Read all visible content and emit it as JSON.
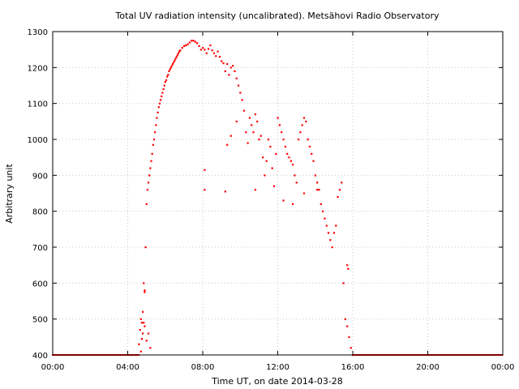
{
  "chart_data": {
    "type": "scatter",
    "title": "Total UV radiation intensity (uncalibrated). Metsähovi Radio Observatory",
    "xlabel": "Time UT, on date 2014-03-28",
    "ylabel": "Arbitrary unit",
    "xlim": [
      0,
      24
    ],
    "ylim": [
      400,
      1300
    ],
    "x_ticks": [
      {
        "value": 0,
        "label": "00:00"
      },
      {
        "value": 4,
        "label": "04:00"
      },
      {
        "value": 8,
        "label": "08:00"
      },
      {
        "value": 12,
        "label": "12:00"
      },
      {
        "value": 16,
        "label": "16:00"
      },
      {
        "value": 20,
        "label": "20:00"
      },
      {
        "value": 24,
        "label": "00:00"
      }
    ],
    "y_ticks": [
      {
        "value": 400,
        "label": "400"
      },
      {
        "value": 500,
        "label": "500"
      },
      {
        "value": 600,
        "label": "600"
      },
      {
        "value": 700,
        "label": "700"
      },
      {
        "value": 800,
        "label": "800"
      },
      {
        "value": 900,
        "label": "900"
      },
      {
        "value": 1000,
        "label": "1000"
      },
      {
        "value": 1100,
        "label": "1100"
      },
      {
        "value": 1200,
        "label": "1200"
      },
      {
        "value": 1300,
        "label": "1300"
      }
    ],
    "grid": true,
    "marker_color": "#ff0000",
    "series": [
      {
        "x": [
          4.6,
          4.65,
          4.7,
          4.75,
          4.8,
          4.85,
          4.9,
          4.95,
          5.0,
          5.05,
          5.1,
          5.15,
          5.2,
          5.25,
          5.3,
          5.35,
          5.4,
          5.45,
          5.5,
          5.55,
          5.6,
          5.65,
          5.7,
          5.75,
          5.8,
          5.85,
          5.9,
          5.95,
          6.0,
          6.05,
          6.1,
          6.15,
          6.2,
          6.25,
          6.3,
          6.35,
          6.4,
          6.45,
          6.5,
          6.55,
          6.6,
          6.65,
          6.7,
          6.75,
          6.8,
          6.9,
          7.0,
          7.1,
          7.2,
          7.3,
          7.4,
          7.5,
          7.6,
          7.7,
          7.8,
          7.9,
          8.0,
          8.1,
          8.2,
          8.3,
          8.4,
          8.5,
          8.6,
          8.7,
          8.8,
          8.9,
          9.0,
          9.1,
          9.2,
          9.3,
          9.4,
          9.5,
          9.6,
          9.7,
          9.8,
          9.9,
          10.0,
          10.1,
          10.2,
          10.3,
          10.4,
          10.5,
          10.6,
          10.7,
          10.8,
          10.9,
          11.0,
          11.1,
          11.2,
          11.3,
          11.4,
          11.5,
          11.6,
          11.7,
          11.8,
          11.9,
          12.0,
          12.1,
          12.2,
          12.3,
          12.4,
          12.5,
          12.6,
          12.7,
          12.8,
          12.9,
          13.0,
          13.1,
          13.2,
          13.3,
          13.4,
          13.5,
          13.6,
          13.7,
          13.8,
          13.9,
          14.0,
          14.1,
          14.2,
          14.3,
          14.4,
          14.5,
          14.6,
          14.7,
          14.8,
          14.9,
          15.0,
          15.1,
          15.2,
          15.3,
          15.4,
          15.5,
          15.6,
          15.7,
          15.8,
          15.9,
          16.0,
          4.7,
          4.8,
          4.9,
          4.85,
          5.0,
          5.1,
          5.2,
          8.1,
          8.1,
          9.2,
          9.3,
          9.5,
          9.8,
          10.8,
          12.3,
          12.8,
          13.4,
          14.1,
          15.7,
          15.75,
          4.75,
          4.9
        ],
        "y": [
          430,
          470,
          500,
          445,
          460,
          490,
          575,
          700,
          820,
          860,
          880,
          900,
          920,
          940,
          960,
          985,
          1000,
          1020,
          1040,
          1060,
          1075,
          1090,
          1100,
          1110,
          1120,
          1130,
          1140,
          1150,
          1160,
          1165,
          1175,
          1180,
          1190,
          1195,
          1200,
          1205,
          1210,
          1215,
          1220,
          1225,
          1230,
          1235,
          1240,
          1245,
          1248,
          1255,
          1260,
          1262,
          1265,
          1270,
          1275,
          1275,
          1272,
          1268,
          1260,
          1250,
          1255,
          1250,
          1240,
          1252,
          1262,
          1248,
          1240,
          1232,
          1245,
          1230,
          1218,
          1212,
          1190,
          1210,
          1180,
          1200,
          1205,
          1190,
          1170,
          1150,
          1130,
          1110,
          1080,
          1020,
          990,
          1060,
          1040,
          1020,
          1070,
          1050,
          1000,
          1010,
          950,
          900,
          940,
          1000,
          980,
          920,
          870,
          960,
          1060,
          1040,
          1020,
          1000,
          980,
          960,
          950,
          940,
          930,
          900,
          880,
          1000,
          1020,
          1040,
          1060,
          1050,
          1000,
          980,
          960,
          940,
          900,
          880,
          860,
          820,
          800,
          780,
          760,
          740,
          720,
          700,
          740,
          760,
          840,
          860,
          880,
          600,
          500,
          480,
          450,
          420,
          400,
          410,
          520,
          580,
          600,
          440,
          460,
          420,
          860,
          915,
          855,
          985,
          1010,
          1050,
          860,
          830,
          820,
          850,
          860,
          650,
          640,
          490,
          480
        ]
      }
    ]
  }
}
